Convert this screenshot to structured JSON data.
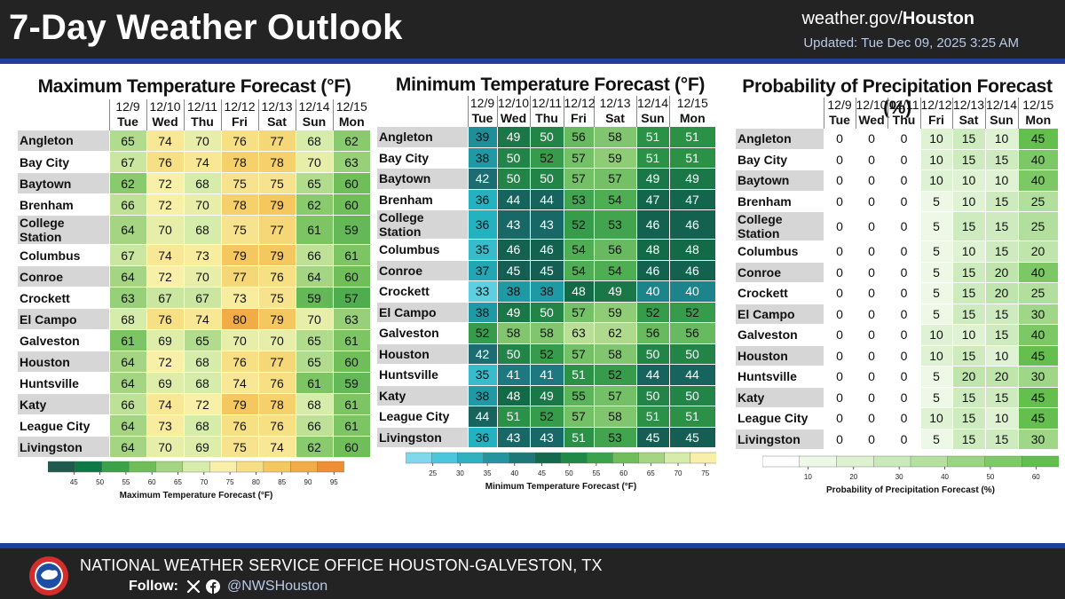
{
  "header": {
    "title": "7-Day Weather Outlook",
    "site_prefix": "weather.gov/",
    "site_bold": "Houston",
    "updated": "Updated: Tue Dec 09, 2025 3:25 AM"
  },
  "footer": {
    "office": "NATIONAL WEATHER SERVICE OFFICE HOUSTON-GALVESTON, TX",
    "follow_label": "Follow:",
    "handle": "@NWSHouston"
  },
  "colors": {
    "header_bg": "#232323",
    "rule": "#1f3f9c",
    "city_bg": "#d6d6d6"
  },
  "chart_data": [
    {
      "id": "max",
      "type": "table",
      "title": "Maximum Temperature Forecast (°F)",
      "dates": [
        "12/9",
        "12/10",
        "12/11",
        "12/12",
        "12/13",
        "12/14",
        "12/15"
      ],
      "days": [
        "Tue",
        "Wed",
        "Thu",
        "Fri",
        "Sat",
        "Sun",
        "Mon"
      ],
      "rows": [
        {
          "city": "Angleton",
          "values": [
            65,
            74,
            70,
            76,
            77,
            68,
            62
          ]
        },
        {
          "city": "Bay City",
          "values": [
            67,
            76,
            74,
            78,
            78,
            70,
            63
          ]
        },
        {
          "city": "Baytown",
          "values": [
            62,
            72,
            68,
            75,
            75,
            65,
            60
          ]
        },
        {
          "city": "Brenham",
          "values": [
            66,
            72,
            70,
            78,
            79,
            62,
            60
          ]
        },
        {
          "city": "College Station",
          "values": [
            64,
            70,
            68,
            75,
            77,
            61,
            59
          ]
        },
        {
          "city": "Columbus",
          "values": [
            67,
            74,
            73,
            79,
            79,
            66,
            61
          ]
        },
        {
          "city": "Conroe",
          "values": [
            64,
            72,
            70,
            77,
            76,
            64,
            60
          ]
        },
        {
          "city": "Crockett",
          "values": [
            63,
            67,
            67,
            73,
            75,
            59,
            57
          ]
        },
        {
          "city": "El Campo",
          "values": [
            68,
            76,
            74,
            80,
            79,
            70,
            63
          ]
        },
        {
          "city": "Galveston",
          "values": [
            61,
            69,
            65,
            70,
            70,
            65,
            61
          ]
        },
        {
          "city": "Houston",
          "values": [
            64,
            72,
            68,
            76,
            77,
            65,
            60
          ]
        },
        {
          "city": "Huntsville",
          "values": [
            64,
            69,
            68,
            74,
            76,
            61,
            59
          ]
        },
        {
          "city": "Katy",
          "values": [
            66,
            74,
            72,
            79,
            78,
            68,
            61
          ]
        },
        {
          "city": "League City",
          "values": [
            64,
            73,
            68,
            76,
            76,
            66,
            61
          ]
        },
        {
          "city": "Livingston",
          "values": [
            64,
            70,
            69,
            75,
            74,
            62,
            60
          ]
        }
      ],
      "legend": {
        "label": "Maximum Temperature Forecast (°F)",
        "ticks": [
          45,
          50,
          55,
          60,
          65,
          70,
          75,
          80,
          85,
          90,
          95
        ],
        "range": [
          40,
          97
        ],
        "colors": [
          "#1f5a4d",
          "#0d7a45",
          "#3aa24a",
          "#6fbe5a",
          "#a5d583",
          "#d6ecaa",
          "#f8f0a8",
          "#f7df84",
          "#f5c85f",
          "#f2ac45",
          "#ee8e35"
        ]
      }
    },
    {
      "id": "min",
      "type": "table",
      "title": "Minimum Temperature Forecast (°F)",
      "dates": [
        "12/9",
        "12/10",
        "12/11",
        "12/12",
        "12/13",
        "12/14",
        "12/15"
      ],
      "days": [
        "Tue",
        "Wed",
        "Thu",
        "Fri",
        "Sat",
        "Sun",
        "Mon"
      ],
      "rows": [
        {
          "city": "Angleton",
          "values": [
            39,
            49,
            50,
            56,
            58,
            51,
            51
          ]
        },
        {
          "city": "Bay City",
          "values": [
            38,
            50,
            52,
            57,
            59,
            51,
            51
          ]
        },
        {
          "city": "Baytown",
          "values": [
            42,
            50,
            50,
            57,
            57,
            49,
            49
          ]
        },
        {
          "city": "Brenham",
          "values": [
            36,
            44,
            44,
            53,
            54,
            47,
            47
          ]
        },
        {
          "city": "College Station",
          "values": [
            36,
            43,
            43,
            52,
            53,
            46,
            46
          ]
        },
        {
          "city": "Columbus",
          "values": [
            35,
            46,
            46,
            54,
            56,
            48,
            48
          ]
        },
        {
          "city": "Conroe",
          "values": [
            37,
            45,
            45,
            54,
            54,
            46,
            46
          ]
        },
        {
          "city": "Crockett",
          "values": [
            33,
            38,
            38,
            48,
            49,
            40,
            40
          ]
        },
        {
          "city": "El Campo",
          "values": [
            38,
            49,
            50,
            57,
            59,
            52,
            52
          ]
        },
        {
          "city": "Galveston",
          "values": [
            52,
            58,
            58,
            63,
            62,
            56,
            56
          ]
        },
        {
          "city": "Houston",
          "values": [
            42,
            50,
            52,
            57,
            58,
            50,
            50
          ]
        },
        {
          "city": "Huntsville",
          "values": [
            35,
            41,
            41,
            51,
            52,
            44,
            44
          ]
        },
        {
          "city": "Katy",
          "values": [
            38,
            48,
            49,
            55,
            57,
            50,
            50
          ]
        },
        {
          "city": "League City",
          "values": [
            44,
            51,
            52,
            57,
            58,
            51,
            51
          ]
        },
        {
          "city": "Livingston",
          "values": [
            36,
            43,
            43,
            51,
            53,
            45,
            45
          ]
        }
      ],
      "legend": {
        "label": "Minimum Temperature Forecast (°F)",
        "ticks": [
          25,
          30,
          35,
          40,
          45,
          50,
          55,
          60,
          65,
          70,
          75
        ],
        "range": [
          20,
          77
        ],
        "colors": [
          "#7fd8ee",
          "#4cc6dc",
          "#2fb1c0",
          "#24949f",
          "#1f7878",
          "#156a4e",
          "#1f8a47",
          "#3aa24a",
          "#6fbe5a",
          "#a5d583",
          "#d6ecaa",
          "#f8f0a8"
        ]
      }
    },
    {
      "id": "pop",
      "type": "table",
      "title": "Probability of Precipitation Forecast (%)",
      "dates": [
        "12/9",
        "12/10",
        "12/11",
        "12/12",
        "12/13",
        "12/14",
        "12/15"
      ],
      "days": [
        "Tue",
        "Wed",
        "Thu",
        "Fri",
        "Sat",
        "Sun",
        "Mon"
      ],
      "rows": [
        {
          "city": "Angleton",
          "values": [
            0,
            0,
            0,
            10,
            15,
            10,
            45
          ]
        },
        {
          "city": "Bay City",
          "values": [
            0,
            0,
            0,
            10,
            15,
            15,
            40
          ]
        },
        {
          "city": "Baytown",
          "values": [
            0,
            0,
            0,
            10,
            10,
            10,
            40
          ]
        },
        {
          "city": "Brenham",
          "values": [
            0,
            0,
            0,
            5,
            10,
            15,
            25
          ]
        },
        {
          "city": "College Station",
          "values": [
            0,
            0,
            0,
            5,
            15,
            15,
            25
          ]
        },
        {
          "city": "Columbus",
          "values": [
            0,
            0,
            0,
            5,
            10,
            15,
            20
          ]
        },
        {
          "city": "Conroe",
          "values": [
            0,
            0,
            0,
            5,
            15,
            20,
            40
          ]
        },
        {
          "city": "Crockett",
          "values": [
            0,
            0,
            0,
            5,
            15,
            20,
            25
          ]
        },
        {
          "city": "El Campo",
          "values": [
            0,
            0,
            0,
            5,
            15,
            15,
            30
          ]
        },
        {
          "city": "Galveston",
          "values": [
            0,
            0,
            0,
            10,
            10,
            15,
            40
          ]
        },
        {
          "city": "Houston",
          "values": [
            0,
            0,
            0,
            10,
            15,
            10,
            45
          ]
        },
        {
          "city": "Huntsville",
          "values": [
            0,
            0,
            0,
            5,
            20,
            20,
            30
          ]
        },
        {
          "city": "Katy",
          "values": [
            0,
            0,
            0,
            5,
            15,
            15,
            45
          ]
        },
        {
          "city": "League City",
          "values": [
            0,
            0,
            0,
            10,
            15,
            10,
            45
          ]
        },
        {
          "city": "Livingston",
          "values": [
            0,
            0,
            0,
            5,
            15,
            15,
            30
          ]
        }
      ],
      "legend": {
        "label": "Probability of Precipitation Forecast (%)",
        "ticks": [
          10,
          20,
          30,
          40,
          50,
          60
        ],
        "range": [
          0,
          65
        ],
        "colors": [
          "#ffffff",
          "#eef8e6",
          "#def2d2",
          "#cbeabb",
          "#b5e0a0",
          "#9bd584",
          "#7fca68",
          "#62be4e"
        ]
      }
    }
  ]
}
